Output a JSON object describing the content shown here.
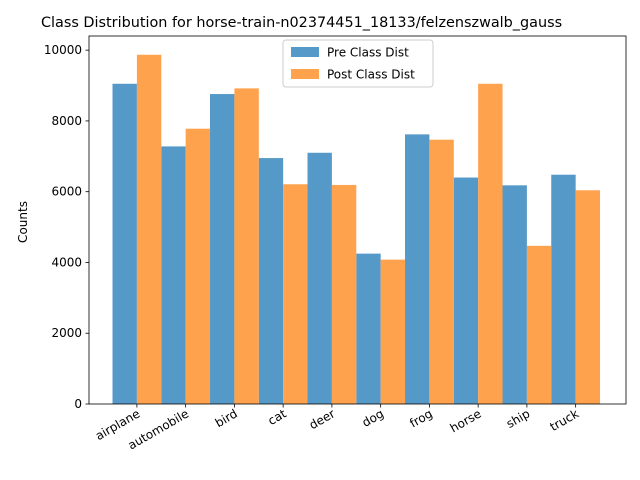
{
  "chart_data": {
    "type": "bar",
    "title": "Class Distribution for horse-train-n02374451_18133/felzenszwalb_gauss",
    "xlabel": "",
    "ylabel": "Counts",
    "ylim": [
      0,
      10400
    ],
    "yticks": [
      0,
      2000,
      4000,
      6000,
      8000,
      10000
    ],
    "categories": [
      "airplane",
      "automobile",
      "bird",
      "cat",
      "deer",
      "dog",
      "frog",
      "horse",
      "ship",
      "truck"
    ],
    "series": [
      {
        "name": "Pre Class Dist",
        "color": "#5599c8",
        "values": [
          9050,
          7280,
          8760,
          6950,
          7100,
          4250,
          7620,
          6400,
          6180,
          6480
        ]
      },
      {
        "name": "Post Class Dist",
        "color": "#ffa24e",
        "values": [
          9870,
          7780,
          8920,
          6210,
          6190,
          4080,
          7470,
          9050,
          4470,
          6040
        ]
      }
    ],
    "legend": "top-center",
    "grid": false
  }
}
